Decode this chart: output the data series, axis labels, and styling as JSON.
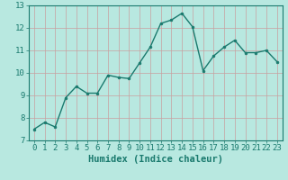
{
  "x": [
    0,
    1,
    2,
    3,
    4,
    5,
    6,
    7,
    8,
    9,
    10,
    11,
    12,
    13,
    14,
    15,
    16,
    17,
    18,
    19,
    20,
    21,
    22,
    23
  ],
  "y": [
    7.5,
    7.8,
    7.6,
    8.9,
    9.4,
    9.1,
    9.1,
    9.9,
    9.8,
    9.75,
    10.45,
    11.15,
    12.2,
    12.35,
    12.65,
    12.05,
    10.1,
    10.75,
    11.15,
    11.45,
    10.9,
    10.9,
    11.0,
    10.5
  ],
  "line_color": "#1a7a6e",
  "marker": "o",
  "marker_size": 2.0,
  "bg_color": "#b8e8e0",
  "grid_color": "#c8a0a0",
  "xlabel": "Humidex (Indice chaleur)",
  "ylim": [
    7,
    13
  ],
  "xlim_min": -0.5,
  "xlim_max": 23.5,
  "yticks": [
    7,
    8,
    9,
    10,
    11,
    12,
    13
  ],
  "xticks": [
    0,
    1,
    2,
    3,
    4,
    5,
    6,
    7,
    8,
    9,
    10,
    11,
    12,
    13,
    14,
    15,
    16,
    17,
    18,
    19,
    20,
    21,
    22,
    23
  ],
  "xlabel_fontsize": 7.5,
  "tick_fontsize": 6.5,
  "linewidth": 1.0
}
